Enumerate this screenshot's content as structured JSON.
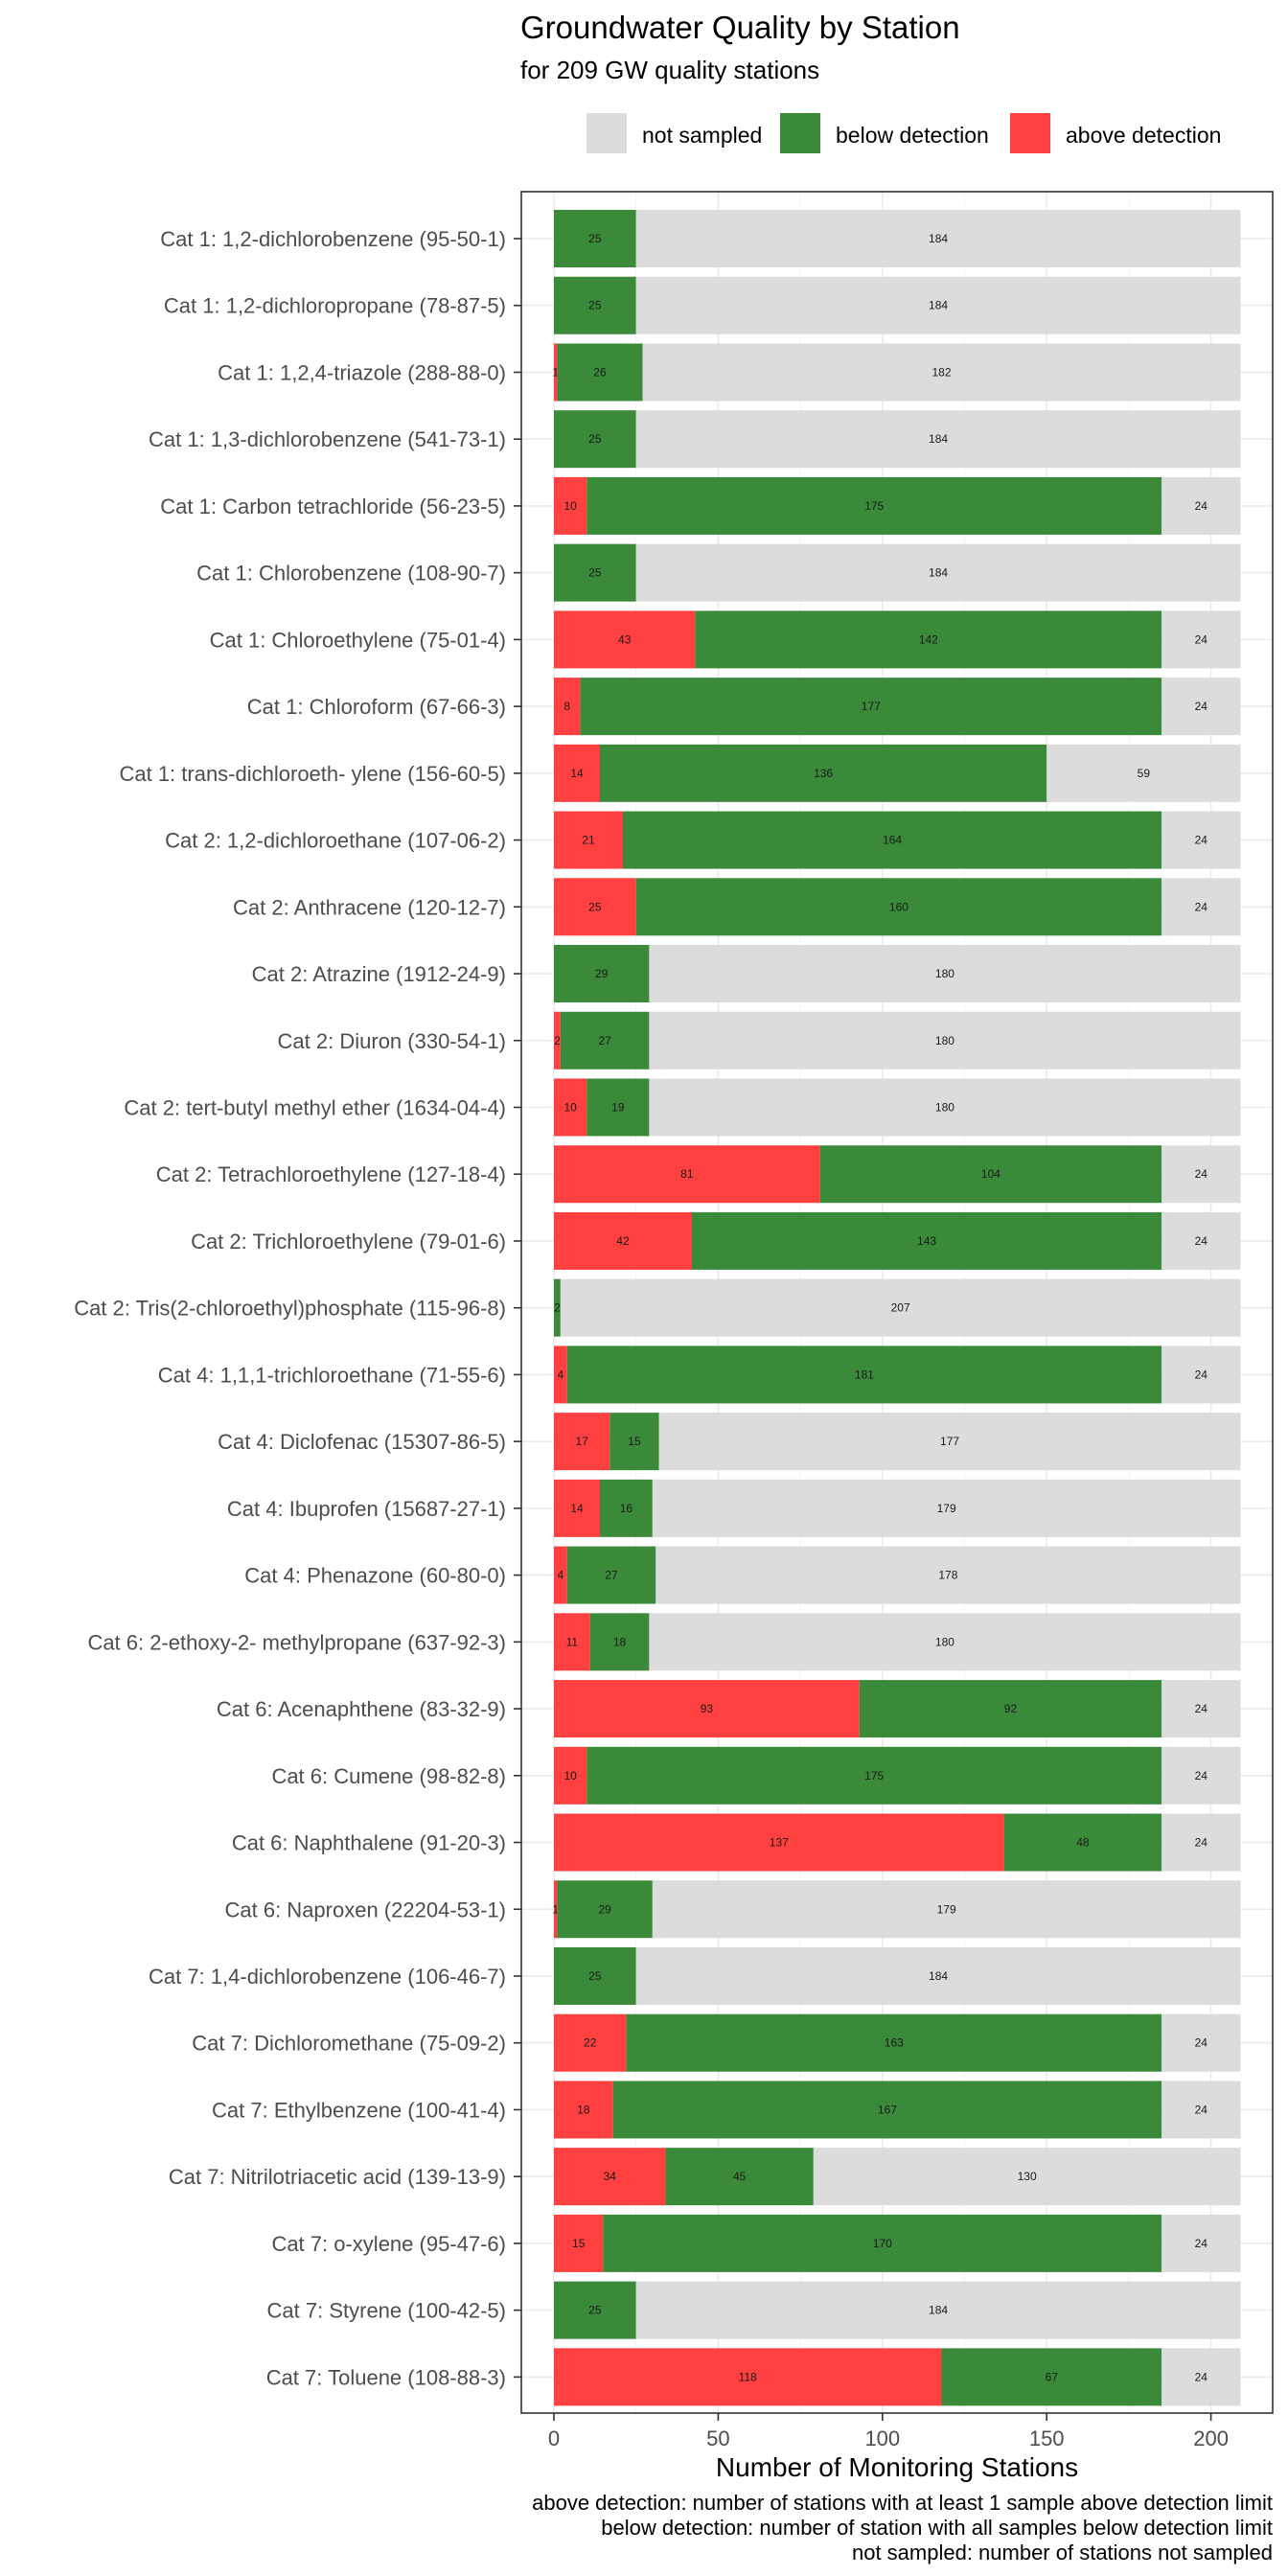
{
  "chart_data": {
    "type": "bar",
    "orientation": "horizontal",
    "stacked": true,
    "title": "Groundwater Quality by Station",
    "subtitle": "for 209 GW quality stations",
    "xlabel": "Number of Monitoring Stations",
    "ylabel": "",
    "xlim": [
      0,
      209
    ],
    "xticks": [
      0,
      50,
      100,
      150,
      200
    ],
    "grid": true,
    "legend_position": "top",
    "legend": [
      {
        "key": "not_sampled",
        "label": "not sampled",
        "color": "#dcdcdc"
      },
      {
        "key": "below_detection",
        "label": "below detection",
        "color": "#3a8a3a"
      },
      {
        "key": "above_detection",
        "label": "above detection",
        "color": "#ff4040"
      }
    ],
    "footnotes": [
      "above detection: number of stations with at least 1 sample above detection limit",
      "below detection: number of station with all samples below detection limit",
      "not sampled: number of stations not sampled"
    ],
    "categories": [
      "Cat 1: 1,2-dichlorobenzene (95-50-1)",
      "Cat 1: 1,2-dichloropropane (78-87-5)",
      "Cat 1: 1,2,4-triazole (288-88-0)",
      "Cat 1: 1,3-dichlorobenzene (541-73-1)",
      "Cat 1: Carbon tetrachloride (56-23-5)",
      "Cat 1: Chlorobenzene (108-90-7)",
      "Cat 1: Chloroethylene (75-01-4)",
      "Cat 1: Chloroform (67-66-3)",
      "Cat 1: trans-dichloroeth- ylene (156-60-5)",
      "Cat 2: 1,2-dichloroethane (107-06-2)",
      "Cat 2: Anthracene (120-12-7)",
      "Cat 2: Atrazine (1912-24-9)",
      "Cat 2: Diuron (330-54-1)",
      "Cat 2: tert-butyl methyl ether (1634-04-4)",
      "Cat 2: Tetrachloroethylene (127-18-4)",
      "Cat 2: Trichloroethylene (79-01-6)",
      "Cat 2: Tris(2-chloroethyl)phosphate (115-96-8)",
      "Cat 4: 1,1,1-trichloroethane (71-55-6)",
      "Cat 4: Diclofenac (15307-86-5)",
      "Cat 4: Ibuprofen (15687-27-1)",
      "Cat 4: Phenazone (60-80-0)",
      "Cat 6: 2-ethoxy-2- methylpropane (637-92-3)",
      "Cat 6: Acenaphthene (83-32-9)",
      "Cat 6: Cumene (98-82-8)",
      "Cat 6: Naphthalene (91-20-3)",
      "Cat 6: Naproxen (22204-53-1)",
      "Cat 7: 1,4-dichlorobenzene (106-46-7)",
      "Cat 7: Dichloromethane (75-09-2)",
      "Cat 7: Ethylbenzene (100-41-4)",
      "Cat 7: Nitrilotriacetic acid (139-13-9)",
      "Cat 7: o-xylene (95-47-6)",
      "Cat 7: Styrene (100-42-5)",
      "Cat 7: Toluene (108-88-3)"
    ],
    "series": [
      {
        "name": "above detection",
        "key": "above_detection",
        "values": [
          0,
          0,
          1,
          0,
          10,
          0,
          43,
          8,
          14,
          21,
          25,
          0,
          2,
          10,
          81,
          42,
          0,
          4,
          17,
          14,
          4,
          11,
          93,
          10,
          137,
          1,
          0,
          22,
          18,
          34,
          15,
          0,
          118
        ]
      },
      {
        "name": "below detection",
        "key": "below_detection",
        "values": [
          25,
          25,
          26,
          25,
          175,
          25,
          142,
          177,
          136,
          164,
          160,
          29,
          27,
          19,
          104,
          143,
          2,
          181,
          15,
          16,
          27,
          18,
          92,
          175,
          48,
          29,
          25,
          163,
          167,
          45,
          170,
          25,
          67
        ]
      },
      {
        "name": "not sampled",
        "key": "not_sampled",
        "values": [
          184,
          184,
          182,
          184,
          24,
          184,
          24,
          24,
          59,
          24,
          24,
          180,
          180,
          180,
          24,
          24,
          207,
          24,
          177,
          179,
          178,
          180,
          24,
          24,
          24,
          179,
          184,
          24,
          24,
          130,
          24,
          184,
          24
        ]
      }
    ]
  }
}
